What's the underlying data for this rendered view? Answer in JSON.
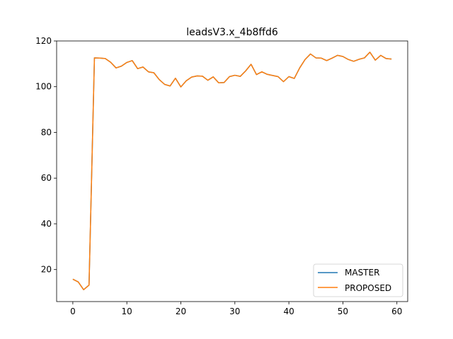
{
  "chart_data": {
    "type": "line",
    "title": "leadsV3.x_4b8ffd6",
    "xlabel": "",
    "ylabel": "",
    "xlim": [
      -3,
      62
    ],
    "ylim": [
      6,
      120
    ],
    "xticks": [
      0,
      10,
      20,
      30,
      40,
      50,
      60
    ],
    "yticks": [
      20,
      40,
      60,
      80,
      100,
      120
    ],
    "legend_position": "bottom-right",
    "grid": false,
    "x": [
      0,
      1,
      2,
      3,
      4,
      5,
      6,
      7,
      8,
      9,
      10,
      11,
      12,
      13,
      14,
      15,
      16,
      17,
      18,
      19,
      20,
      21,
      22,
      23,
      24,
      25,
      26,
      27,
      28,
      29,
      30,
      31,
      32,
      33,
      34,
      35,
      36,
      37,
      38,
      39,
      40,
      41,
      42,
      43,
      44,
      45,
      46,
      47,
      48,
      49,
      50,
      51,
      52,
      53,
      54,
      55,
      56,
      57,
      58,
      59
    ],
    "series": [
      {
        "name": "MASTER",
        "color": "#1f77b4",
        "values": [
          15.8,
          14.6,
          11.2,
          13.2,
          112.6,
          112.5,
          112.3,
          110.7,
          108.2,
          109.0,
          110.6,
          111.4,
          107.9,
          108.6,
          106.5,
          106.1,
          103.1,
          101.0,
          100.3,
          103.7,
          99.9,
          102.6,
          104.2,
          104.7,
          104.6,
          102.8,
          104.3,
          101.7,
          101.8,
          104.4,
          105.0,
          104.5,
          106.9,
          109.8,
          105.3,
          106.5,
          105.4,
          104.9,
          104.4,
          102.2,
          104.4,
          103.6,
          108.2,
          111.9,
          114.3,
          112.6,
          112.5,
          111.4,
          112.5,
          113.7,
          113.2,
          111.9,
          111.1,
          112.0,
          112.6,
          115.1,
          111.6,
          113.7,
          112.3,
          112.1
        ]
      },
      {
        "name": "PROPOSED",
        "color": "#ff7f0e",
        "values": [
          15.8,
          14.6,
          11.2,
          13.2,
          112.6,
          112.5,
          112.3,
          110.7,
          108.2,
          109.0,
          110.6,
          111.4,
          107.9,
          108.6,
          106.5,
          106.1,
          103.1,
          101.0,
          100.3,
          103.7,
          99.9,
          102.6,
          104.2,
          104.7,
          104.6,
          102.8,
          104.3,
          101.7,
          101.8,
          104.4,
          105.0,
          104.5,
          106.9,
          109.8,
          105.3,
          106.5,
          105.4,
          104.9,
          104.4,
          102.2,
          104.4,
          103.6,
          108.2,
          111.9,
          114.3,
          112.6,
          112.5,
          111.4,
          112.5,
          113.7,
          113.2,
          111.9,
          111.1,
          112.0,
          112.6,
          115.1,
          111.6,
          113.7,
          112.3,
          112.1
        ]
      }
    ]
  }
}
